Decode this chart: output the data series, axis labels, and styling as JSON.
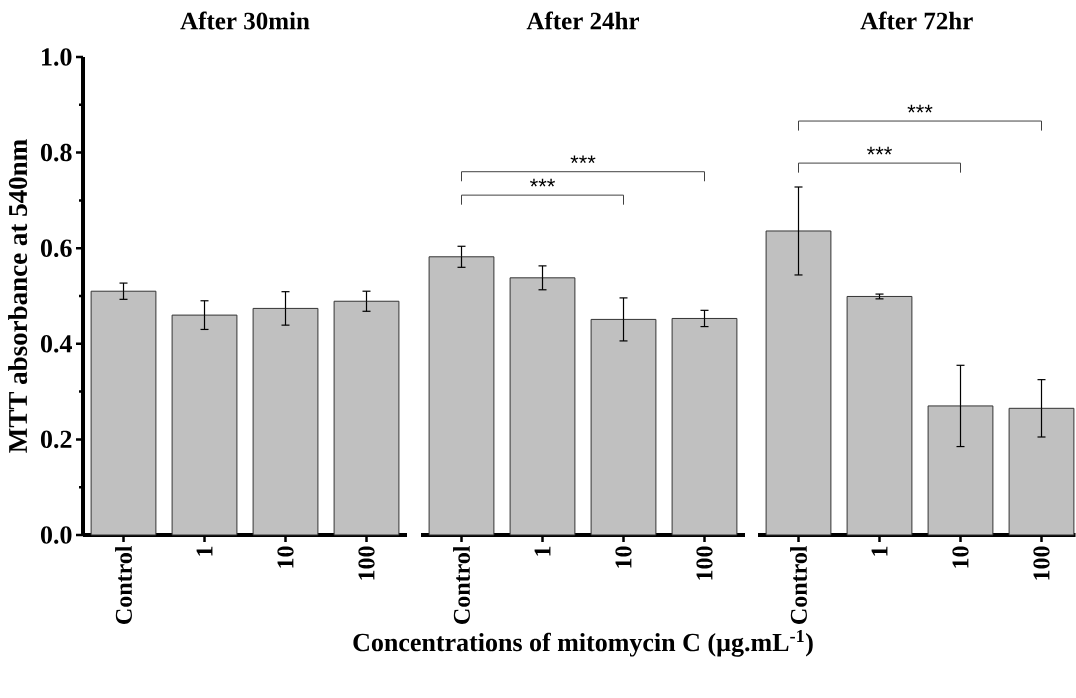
{
  "chart_data": [
    {
      "type": "bar",
      "title": "After 30min",
      "ylabel": "MTT absorbance at 540nm",
      "categories": [
        "Control",
        "1",
        "10",
        "100"
      ],
      "values": [
        0.51,
        0.46,
        0.474,
        0.489
      ],
      "errors": [
        0.017,
        0.03,
        0.035,
        0.021
      ],
      "color": "#c0c0c0",
      "ylim": [
        0,
        1.0
      ],
      "yticks": [
        {
          "value": 0,
          "label": "0.0"
        },
        0.2,
        0.4,
        0.6,
        0.8,
        {
          "value": 1.0,
          "label": "1.0"
        }
      ]
    },
    {
      "type": "bar",
      "title": "After 24hr",
      "xlabel": "Concentrations of mitomycin C (µg.mL$^{-1}$)",
      "categories": [
        "Control",
        "1",
        "10",
        "100"
      ],
      "values": [
        0.582,
        0.538,
        0.451,
        0.453
      ],
      "errors": [
        0.022,
        0.025,
        0.045,
        0.017
      ],
      "color": "#c0c0c0",
      "ylim": [
        0,
        1.0
      ],
      "tick_labels": "x",
      "annotations": [
        "***",
        "***"
      ]
    },
    {
      "type": "bar",
      "title": "After 72hr",
      "categories": [
        "Control",
        "1",
        "10",
        "100"
      ],
      "values": [
        0.636,
        0.499,
        0.27,
        0.265
      ],
      "errors": [
        0.092,
        0.005,
        0.085,
        0.06
      ],
      "color": "#c0c0c0",
      "ylim": [
        0,
        1.0
      ],
      "tick_labels": "x",
      "annotations": [
        "***",
        "***"
      ]
    }
  ]
}
